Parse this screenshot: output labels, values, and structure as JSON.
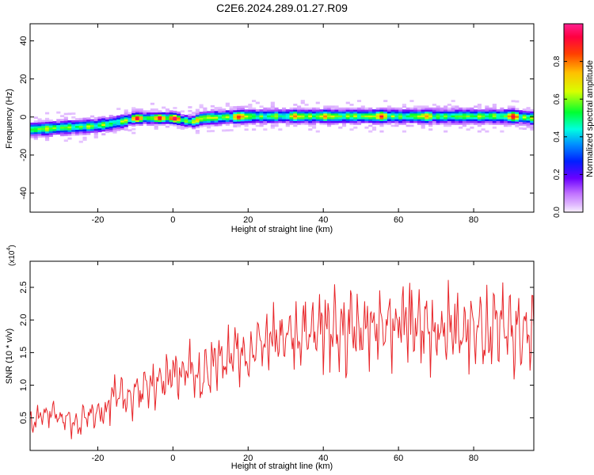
{
  "title": "C2E6.2024.289.01.27.R09",
  "colorbar": {
    "label": "Normalized spectral amplitude",
    "ticks": [
      "0.0",
      "0.2",
      "0.4",
      "0.6",
      "0.8"
    ],
    "tick_values": [
      0.0,
      0.2,
      0.4,
      0.6,
      0.8
    ],
    "range": [
      0,
      1
    ]
  },
  "chart_data": [
    {
      "type": "heatmap",
      "title": "",
      "xlabel": "Height of straight line (km)",
      "ylabel": "Frequency (Hz)",
      "xlim": [
        -38,
        96
      ],
      "ylim": [
        -50,
        49
      ],
      "xticks": [
        -20,
        0,
        20,
        40,
        60,
        80
      ],
      "xtick_labels": [
        "-20",
        "0",
        "20",
        "40",
        "60",
        "80"
      ],
      "yticks": [
        -40,
        -20,
        0,
        20,
        40
      ],
      "ytick_labels": [
        "-40",
        "-20",
        "0",
        "20",
        "40"
      ],
      "grid": false,
      "ridge": {
        "x": [
          -38,
          -30,
          -20,
          -14,
          -10,
          0,
          5,
          8,
          20,
          30,
          40,
          50,
          60,
          70,
          80,
          90,
          96
        ],
        "freq": [
          -7,
          -6,
          -5,
          -3,
          -1,
          -1,
          -3,
          -1,
          0,
          0,
          0,
          0,
          0,
          0,
          0,
          0,
          -1
        ],
        "halfwidth_hz": [
          3,
          3,
          3,
          3,
          2.5,
          2.5,
          2.5,
          3,
          3,
          3,
          3,
          3,
          3,
          3,
          3,
          3,
          3
        ]
      },
      "peaks": [
        {
          "x": -34,
          "freq": -7,
          "amp": 0.7
        },
        {
          "x": -10,
          "freq": -1,
          "amp": 0.95
        },
        {
          "x": -4,
          "freq": -1,
          "amp": 0.95
        },
        {
          "x": 0,
          "freq": -1,
          "amp": 1.0
        },
        {
          "x": 6,
          "freq": -3,
          "amp": 0.75
        },
        {
          "x": 17,
          "freq": -1,
          "amp": 0.9
        },
        {
          "x": 32,
          "freq": 0,
          "amp": 0.8
        },
        {
          "x": 40,
          "freq": 0,
          "amp": 0.8
        },
        {
          "x": 55,
          "freq": 0,
          "amp": 0.9
        },
        {
          "x": 67,
          "freq": 0,
          "amp": 0.8
        },
        {
          "x": 90,
          "freq": 0,
          "amp": 0.95
        }
      ]
    },
    {
      "type": "line",
      "title": "",
      "xlabel": "Height of straight line (km)",
      "ylabel": "SNR (10 * v/v)",
      "y_multiplier_label": "(x10",
      "y_multiplier_exp": "4",
      "xlim": [
        -38,
        96
      ],
      "ylim": [
        0,
        2.9
      ],
      "xticks": [
        -20,
        0,
        20,
        40,
        60,
        80
      ],
      "xtick_labels": [
        "-20",
        "0",
        "20",
        "40",
        "60",
        "80"
      ],
      "yticks": [
        0.5,
        1.0,
        1.5,
        2.0,
        2.5
      ],
      "ytick_labels": [
        "0.5",
        "1.0",
        "1.5",
        "2.0",
        "2.5"
      ],
      "grid": false,
      "color": "#e8262a",
      "series": [
        {
          "x": [
            -38,
            -36,
            -34,
            -32,
            -30,
            -28,
            -26,
            -24,
            -22,
            -20,
            -18,
            -16,
            -14,
            -12,
            -10,
            -8,
            -6,
            -4,
            -2,
            0,
            2,
            4,
            6,
            8,
            10,
            12,
            14,
            16,
            18,
            20,
            22,
            24,
            26,
            28,
            30,
            32,
            34,
            36,
            38,
            40,
            42,
            44,
            46,
            48,
            50,
            52,
            54,
            56,
            58,
            60,
            62,
            64,
            66,
            68,
            70,
            72,
            74,
            76,
            78,
            80,
            82,
            84,
            86,
            88,
            90,
            92,
            94,
            96
          ],
          "values": [
            0.4,
            0.5,
            0.55,
            0.6,
            0.5,
            0.45,
            0.35,
            0.5,
            0.55,
            0.6,
            0.55,
            0.85,
            0.85,
            0.8,
            0.85,
            0.95,
            1.05,
            1.0,
            1.1,
            1.15,
            1.2,
            1.3,
            1.2,
            1.05,
            1.3,
            1.35,
            1.45,
            1.55,
            1.4,
            1.5,
            1.6,
            1.6,
            1.7,
            1.75,
            1.75,
            1.8,
            1.85,
            1.85,
            1.85,
            1.9,
            1.85,
            1.9,
            1.8,
            1.85,
            1.9,
            1.85,
            1.85,
            1.9,
            1.8,
            1.85,
            1.95,
            1.95,
            1.9,
            1.85,
            1.85,
            1.8,
            1.85,
            1.85,
            1.9,
            1.9,
            1.85,
            1.8,
            1.85,
            1.85,
            1.8,
            1.85,
            1.75,
            1.8
          ]
        }
      ]
    }
  ]
}
